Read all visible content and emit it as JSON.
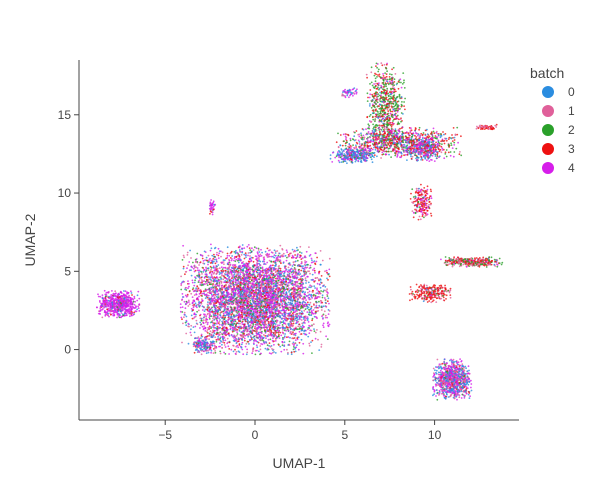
{
  "chart_data": {
    "type": "scatter",
    "title": "",
    "xlabel": "UMAP-1",
    "ylabel": "UMAP-2",
    "xlim": [
      -9.8,
      14.7
    ],
    "ylim": [
      -4.5,
      18.5
    ],
    "x_ticks": [
      -5,
      0,
      5,
      10
    ],
    "x_tick_labels": [
      "−5",
      "0",
      "5",
      "10"
    ],
    "y_ticks": [
      0,
      5,
      10,
      15
    ],
    "y_tick_labels": [
      "0",
      "5",
      "10",
      "15"
    ],
    "grid": false,
    "legend_placement": "top-right",
    "legend_title": "batch",
    "series": [
      {
        "name": "0",
        "color": "#2b8de0"
      },
      {
        "name": "1",
        "color": "#e0609a"
      },
      {
        "name": "2",
        "color": "#2aa02a"
      },
      {
        "name": "3",
        "color": "#ee1111"
      },
      {
        "name": "4",
        "color": "#d61eea"
      }
    ],
    "clusters": [
      {
        "cx": 0.0,
        "cy": 3.2,
        "sx": 1.9,
        "sy": 1.6,
        "n": 5200,
        "mix": [
          0.22,
          0.22,
          0.1,
          0.12,
          0.34
        ]
      },
      {
        "cx": -2.8,
        "cy": 0.3,
        "sx": 0.3,
        "sy": 0.25,
        "n": 160,
        "mix": [
          0.35,
          0.25,
          0.05,
          0.05,
          0.3
        ]
      },
      {
        "cx": -7.6,
        "cy": 2.9,
        "sx": 0.55,
        "sy": 0.4,
        "n": 650,
        "mix": [
          0.08,
          0.1,
          0.02,
          0.05,
          0.75
        ]
      },
      {
        "cx": -2.4,
        "cy": 9.1,
        "sx": 0.1,
        "sy": 0.25,
        "n": 40,
        "mix": [
          0.05,
          0.1,
          0.0,
          0.1,
          0.75
        ]
      },
      {
        "cx": 7.3,
        "cy": 15.5,
        "sx": 0.5,
        "sy": 1.3,
        "n": 700,
        "mix": [
          0.05,
          0.1,
          0.45,
          0.3,
          0.1
        ]
      },
      {
        "cx": 8.0,
        "cy": 13.2,
        "sx": 1.6,
        "sy": 0.45,
        "n": 900,
        "mix": [
          0.15,
          0.1,
          0.2,
          0.35,
          0.2
        ]
      },
      {
        "cx": 5.5,
        "cy": 12.4,
        "sx": 0.6,
        "sy": 0.25,
        "n": 300,
        "mix": [
          0.55,
          0.05,
          0.05,
          0.05,
          0.3
        ]
      },
      {
        "cx": 9.4,
        "cy": 12.8,
        "sx": 0.45,
        "sy": 0.35,
        "n": 280,
        "mix": [
          0.3,
          0.1,
          0.05,
          0.2,
          0.35
        ]
      },
      {
        "cx": 9.3,
        "cy": 9.4,
        "sx": 0.3,
        "sy": 0.55,
        "n": 200,
        "mix": [
          0.02,
          0.2,
          0.05,
          0.5,
          0.23
        ]
      },
      {
        "cx": 12.1,
        "cy": 5.6,
        "sx": 0.8,
        "sy": 0.15,
        "n": 350,
        "mix": [
          0.02,
          0.35,
          0.25,
          0.35,
          0.03
        ]
      },
      {
        "cx": 9.8,
        "cy": 3.6,
        "sx": 0.55,
        "sy": 0.28,
        "n": 260,
        "mix": [
          0.02,
          0.3,
          0.1,
          0.55,
          0.03
        ]
      },
      {
        "cx": 11.0,
        "cy": -1.9,
        "sx": 0.5,
        "sy": 0.6,
        "n": 900,
        "mix": [
          0.3,
          0.25,
          0.03,
          0.07,
          0.35
        ]
      },
      {
        "cx": 12.9,
        "cy": 14.2,
        "sx": 0.3,
        "sy": 0.08,
        "n": 60,
        "mix": [
          0.0,
          0.4,
          0.0,
          0.6,
          0.0
        ]
      },
      {
        "cx": 5.2,
        "cy": 16.4,
        "sx": 0.25,
        "sy": 0.15,
        "n": 50,
        "mix": [
          0.3,
          0.1,
          0.0,
          0.0,
          0.6
        ]
      }
    ]
  }
}
